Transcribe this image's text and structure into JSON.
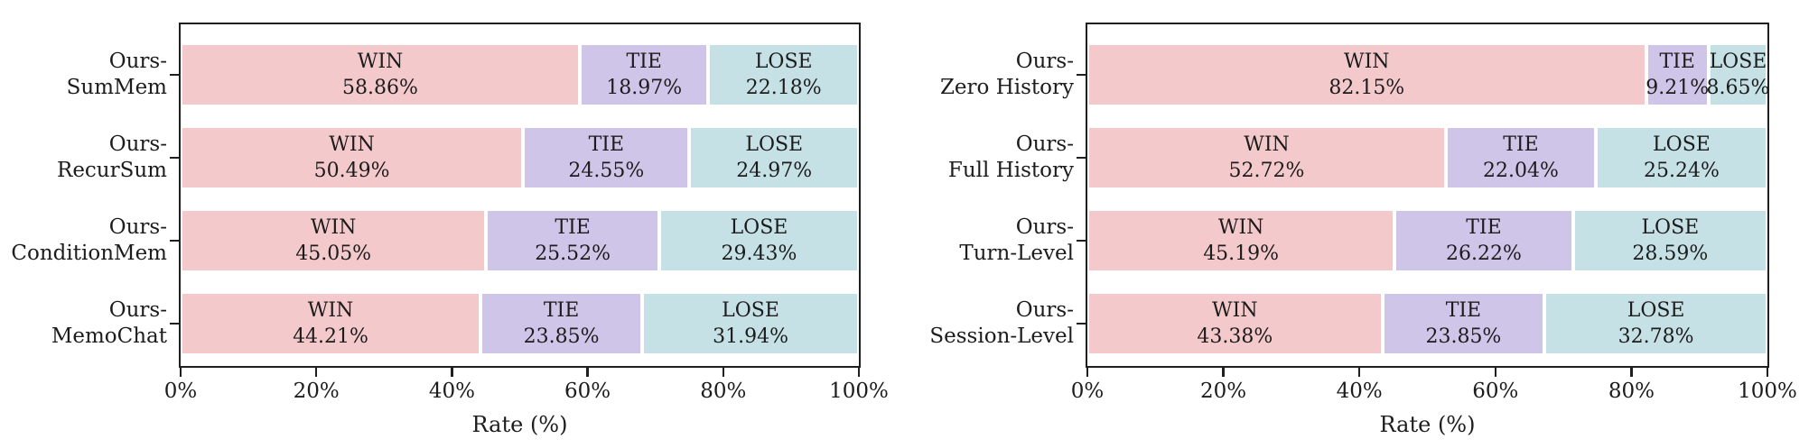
{
  "figure": {
    "background": "#ffffff",
    "frame_color": "#1f1f1f",
    "text_color": "#1c1c1c"
  },
  "colors": {
    "win": "#f4c9cb",
    "tie": "#cfc5e8",
    "lose": "#c6e1e6"
  },
  "chart_data": [
    {
      "type": "bar",
      "orientation": "horizontal-stacked",
      "title": "",
      "xlabel": "Rate (%)",
      "xlim": [
        0,
        100
      ],
      "xticks": [
        "0%",
        "20%",
        "40%",
        "60%",
        "80%",
        "100%"
      ],
      "grid": false,
      "legend_position": "none (segment labels inside bars)",
      "categories": [
        "Ours-\nSumMem",
        "Ours-\nRecurSum",
        "Ours-\nConditionMem",
        "Ours-\nMemoChat"
      ],
      "series": [
        {
          "name": "WIN",
          "color": "#f4c9cb",
          "values": [
            58.86,
            50.49,
            45.05,
            44.21
          ]
        },
        {
          "name": "TIE",
          "color": "#cfc5e8",
          "values": [
            18.97,
            24.55,
            25.52,
            23.85
          ]
        },
        {
          "name": "LOSE",
          "color": "#c6e1e6",
          "values": [
            22.18,
            24.97,
            29.43,
            31.94
          ]
        }
      ]
    },
    {
      "type": "bar",
      "orientation": "horizontal-stacked",
      "title": "",
      "xlabel": "Rate (%)",
      "xlim": [
        0,
        100
      ],
      "xticks": [
        "0%",
        "20%",
        "40%",
        "60%",
        "80%",
        "100%"
      ],
      "grid": false,
      "legend_position": "none (segment labels inside bars)",
      "categories": [
        "Ours-\nZero History",
        "Ours-\nFull History",
        "Ours-\nTurn-Level",
        "Ours-\nSession-Level"
      ],
      "series": [
        {
          "name": "WIN",
          "color": "#f4c9cb",
          "values": [
            82.15,
            52.72,
            45.19,
            43.38
          ]
        },
        {
          "name": "TIE",
          "color": "#cfc5e8",
          "values": [
            9.21,
            22.04,
            26.22,
            23.85
          ]
        },
        {
          "name": "LOSE",
          "color": "#c6e1e6",
          "values": [
            8.65,
            25.24,
            28.59,
            32.78
          ]
        }
      ]
    }
  ]
}
